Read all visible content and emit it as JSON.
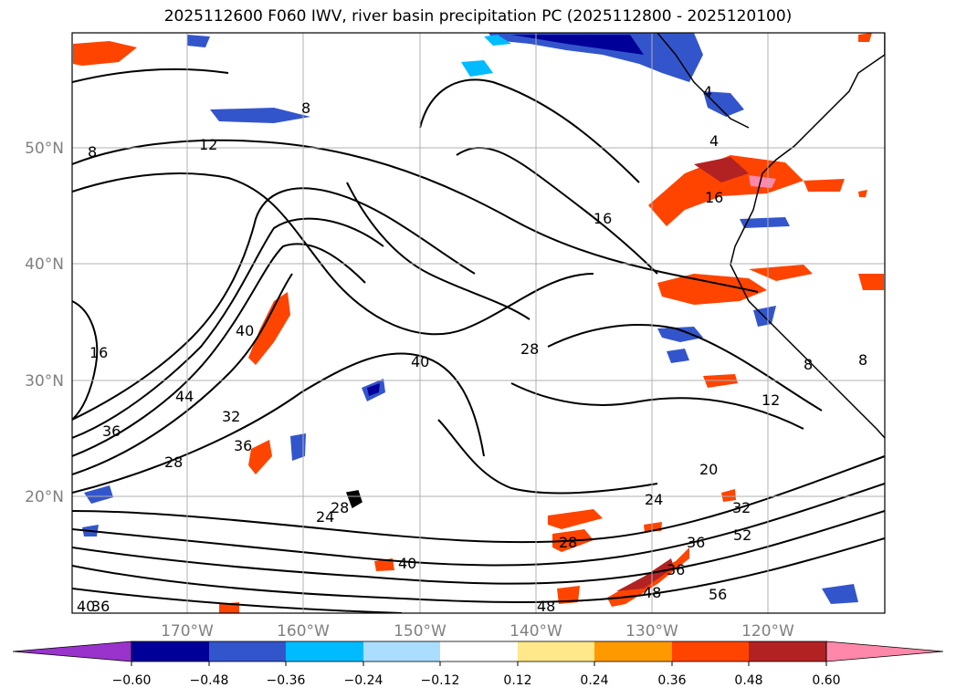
{
  "title": "2025112600 F060 IWV, river basin precipitation PC (2025112800 - 2025120100)",
  "map": {
    "lat_labels": [
      "50°N",
      "40°N",
      "30°N",
      "20°N"
    ],
    "lon_labels": [
      "170°W",
      "160°W",
      "150°W",
      "140°W",
      "130°W",
      "120°W"
    ],
    "contour_labels": [
      "8",
      "8",
      "12",
      "16",
      "4",
      "4",
      "16",
      "16",
      "40",
      "44",
      "36",
      "32",
      "36",
      "28",
      "40",
      "28",
      "12",
      "8",
      "8",
      "20",
      "24",
      "32",
      "28",
      "36",
      "52",
      "24",
      "28",
      "40",
      "36",
      "48",
      "56",
      "48",
      "36",
      "40"
    ]
  },
  "colorbar": {
    "colors": [
      "#9933cc",
      "#000099",
      "#3355cc",
      "#00bbff",
      "#aaddff",
      "#ffffff",
      "#ffe88a",
      "#ff9900",
      "#ff4400",
      "#b22222",
      "#ff88aa"
    ],
    "tick_labels": [
      "−0.60",
      "−0.48",
      "−0.36",
      "−0.24",
      "−0.12",
      "0.12",
      "0.24",
      "0.36",
      "0.48",
      "0.60"
    ]
  }
}
